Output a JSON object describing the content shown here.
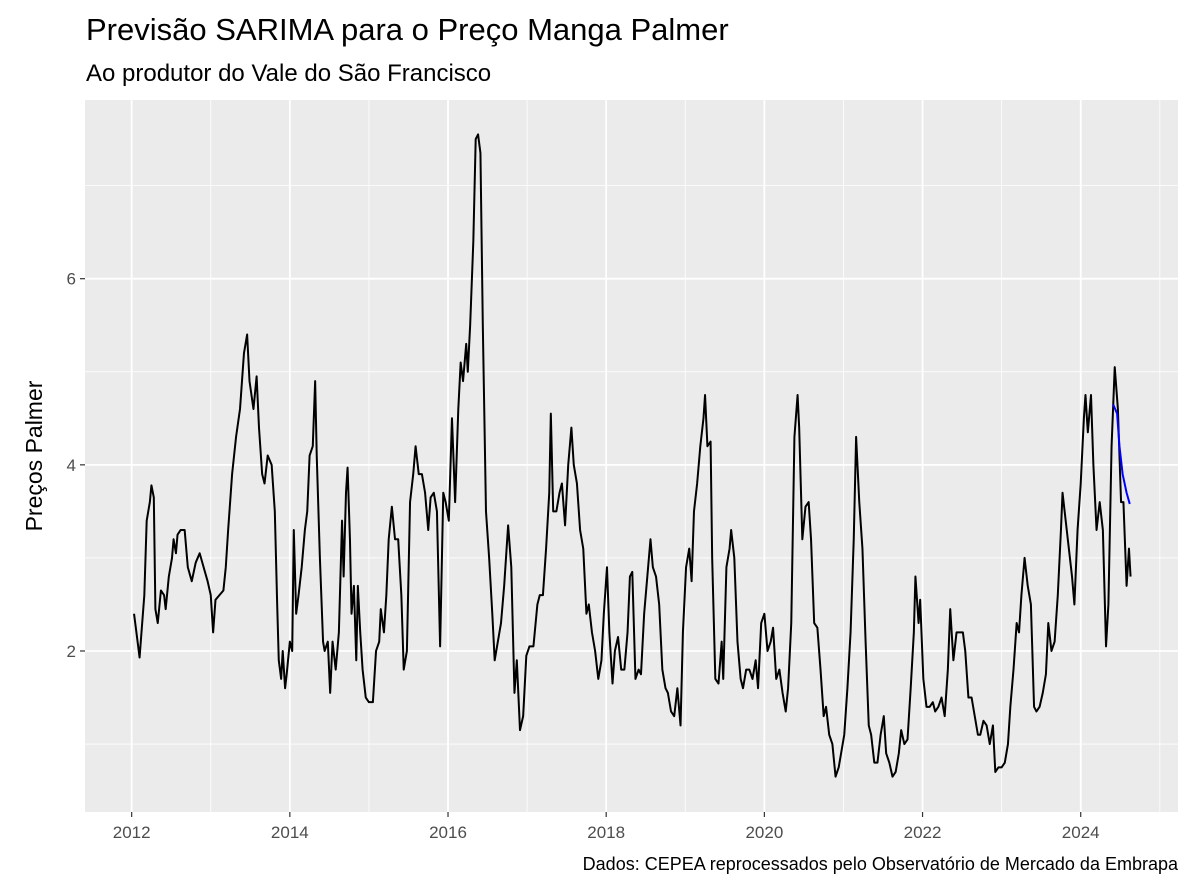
{
  "chart_data": {
    "type": "line",
    "title": "Previsão SARIMA para o Preço Manga Palmer",
    "subtitle": "Ao produtor do Vale do São Francisco",
    "ylabel": "Preços Palmer",
    "caption": "Dados: CEPEA reprocessados pelo Observatório de Mercado da Embrapa",
    "xlim": [
      2011.41,
      2025.23
    ],
    "ylim": [
      0.27,
      7.92
    ],
    "xticks": [
      2012,
      2014,
      2016,
      2018,
      2020,
      2022,
      2024
    ],
    "yticks": [
      2,
      4,
      6
    ],
    "grid": true,
    "series": [
      {
        "color": "#000000",
        "x": [
          2012.03,
          2012.06,
          2012.1,
          2012.16,
          2012.19,
          2012.23,
          2012.25,
          2012.28,
          2012.3,
          2012.33,
          2012.37,
          2012.41,
          2012.43,
          2012.47,
          2012.51,
          2012.53,
          2012.56,
          2012.58,
          2012.62,
          2012.67,
          2012.71,
          2012.76,
          2012.81,
          2012.86,
          2012.91,
          2012.96,
          2013.0,
          2013.03,
          2013.06,
          2013.11,
          2013.16,
          2013.19,
          2013.22,
          2013.27,
          2013.32,
          2013.37,
          2013.42,
          2013.46,
          2013.49,
          2013.54,
          2013.58,
          2013.61,
          2013.65,
          2013.68,
          2013.72,
          2013.77,
          2013.81,
          2013.84,
          2013.86,
          2013.89,
          2013.91,
          2013.94,
          2013.96,
          2014.0,
          2014.03,
          2014.05,
          2014.08,
          2014.11,
          2014.15,
          2014.19,
          2014.22,
          2014.25,
          2014.29,
          2014.32,
          2014.34,
          2014.38,
          2014.42,
          2014.44,
          2014.48,
          2014.51,
          2014.54,
          2014.58,
          2014.62,
          2014.66,
          2014.68,
          2014.71,
          2014.73,
          2014.76,
          2014.78,
          2014.81,
          2014.84,
          2014.86,
          2014.89,
          2014.92,
          2014.96,
          2015.0,
          2015.05,
          2015.09,
          2015.13,
          2015.15,
          2015.19,
          2015.22,
          2015.25,
          2015.29,
          2015.33,
          2015.37,
          2015.41,
          2015.44,
          2015.48,
          2015.52,
          2015.56,
          2015.59,
          2015.63,
          2015.67,
          2015.71,
          2015.75,
          2015.78,
          2015.82,
          2015.86,
          2015.9,
          2015.94,
          2015.97,
          2016.01,
          2016.05,
          2016.09,
          2016.13,
          2016.16,
          2016.19,
          2016.23,
          2016.25,
          2016.28,
          2016.32,
          2016.35,
          2016.38,
          2016.41,
          2016.44,
          2016.48,
          2016.52,
          2016.56,
          2016.59,
          2016.63,
          2016.67,
          2016.71,
          2016.76,
          2016.8,
          2016.84,
          2016.87,
          2016.91,
          2016.95,
          2016.99,
          2017.03,
          2017.08,
          2017.13,
          2017.16,
          2017.2,
          2017.24,
          2017.28,
          2017.3,
          2017.33,
          2017.37,
          2017.41,
          2017.44,
          2017.48,
          2017.52,
          2017.56,
          2017.59,
          2017.63,
          2017.67,
          2017.71,
          2017.75,
          2017.78,
          2017.82,
          2017.86,
          2017.9,
          2017.94,
          2017.97,
          2018.01,
          2018.04,
          2018.08,
          2018.11,
          2018.15,
          2018.19,
          2018.23,
          2018.27,
          2018.3,
          2018.33,
          2018.37,
          2018.41,
          2018.44,
          2018.48,
          2018.52,
          2018.56,
          2018.59,
          2018.63,
          2018.67,
          2018.71,
          2018.75,
          2018.78,
          2018.82,
          2018.86,
          2018.9,
          2018.94,
          2018.97,
          2019.01,
          2019.05,
          2019.08,
          2019.11,
          2019.15,
          2019.19,
          2019.23,
          2019.25,
          2019.28,
          2019.32,
          2019.34,
          2019.38,
          2019.42,
          2019.46,
          2019.48,
          2019.52,
          2019.56,
          2019.58,
          2019.62,
          2019.66,
          2019.7,
          2019.73,
          2019.77,
          2019.81,
          2019.85,
          2019.89,
          2019.92,
          2019.96,
          2020.0,
          2020.04,
          2020.08,
          2020.11,
          2020.15,
          2020.19,
          2020.23,
          2020.27,
          2020.3,
          2020.34,
          2020.38,
          2020.42,
          2020.44,
          2020.48,
          2020.52,
          2020.56,
          2020.59,
          2020.63,
          2020.67,
          2020.71,
          2020.75,
          2020.78,
          2020.82,
          2020.86,
          2020.9,
          2020.94,
          2020.97,
          2021.01,
          2021.05,
          2021.09,
          2021.13,
          2021.16,
          2021.2,
          2021.24,
          2021.28,
          2021.32,
          2021.35,
          2021.39,
          2021.43,
          2021.47,
          2021.51,
          2021.54,
          2021.58,
          2021.62,
          2021.66,
          2021.7,
          2021.73,
          2021.77,
          2021.81,
          2021.85,
          2021.89,
          2021.91,
          2021.95,
          2021.97,
          2022.01,
          2022.05,
          2022.09,
          2022.13,
          2022.16,
          2022.2,
          2022.24,
          2022.28,
          2022.32,
          2022.35,
          2022.39,
          2022.43,
          2022.47,
          2022.51,
          2022.54,
          2022.58,
          2022.62,
          2022.66,
          2022.7,
          2022.73,
          2022.77,
          2022.81,
          2022.85,
          2022.89,
          2022.92,
          2022.96,
          2023.0,
          2023.04,
          2023.08,
          2023.11,
          2023.15,
          2023.19,
          2023.22,
          2023.25,
          2023.29,
          2023.33,
          2023.37,
          2023.41,
          2023.44,
          2023.48,
          2023.52,
          2023.56,
          2023.59,
          2023.63,
          2023.67,
          2023.71,
          2023.75,
          2023.77,
          2023.81,
          2023.85,
          2023.89,
          2023.92,
          2023.96,
          2024.0,
          2024.04,
          2024.06,
          2024.09,
          2024.13,
          2024.16,
          2024.2,
          2024.24,
          2024.28,
          2024.32,
          2024.35,
          2024.39,
          2024.43,
          2024.47,
          2024.51,
          2024.54,
          2024.58,
          2024.61,
          2024.63
        ],
        "values": [
          2.4,
          2.2,
          1.93,
          2.6,
          3.4,
          3.6,
          3.78,
          3.65,
          2.45,
          2.3,
          2.65,
          2.6,
          2.45,
          2.8,
          3.0,
          3.2,
          3.05,
          3.25,
          3.3,
          3.3,
          2.9,
          2.75,
          2.95,
          3.05,
          2.9,
          2.75,
          2.6,
          2.2,
          2.55,
          2.6,
          2.65,
          2.9,
          3.3,
          3.9,
          4.3,
          4.6,
          5.2,
          5.4,
          4.9,
          4.6,
          4.95,
          4.4,
          3.9,
          3.8,
          4.1,
          4.0,
          3.5,
          2.5,
          1.9,
          1.7,
          2.0,
          1.6,
          1.75,
          2.1,
          2.0,
          3.3,
          2.4,
          2.6,
          2.9,
          3.3,
          3.5,
          4.1,
          4.2,
          4.9,
          4.1,
          3.0,
          2.1,
          2.0,
          2.1,
          1.55,
          2.1,
          1.8,
          2.2,
          3.4,
          2.8,
          3.7,
          3.97,
          3.2,
          2.4,
          2.7,
          1.9,
          2.7,
          2.2,
          1.8,
          1.5,
          1.45,
          1.45,
          2.0,
          2.1,
          2.45,
          2.2,
          2.6,
          3.2,
          3.55,
          3.2,
          3.2,
          2.6,
          1.8,
          2.0,
          3.6,
          3.9,
          4.2,
          3.9,
          3.9,
          3.7,
          3.3,
          3.65,
          3.7,
          3.5,
          2.05,
          3.7,
          3.6,
          3.4,
          4.5,
          3.6,
          4.6,
          5.1,
          4.9,
          5.3,
          5.0,
          5.5,
          6.4,
          7.5,
          7.55,
          7.35,
          5.5,
          3.5,
          3.0,
          2.4,
          1.9,
          2.1,
          2.3,
          2.7,
          3.35,
          2.9,
          1.55,
          1.9,
          1.15,
          1.3,
          1.95,
          2.05,
          2.05,
          2.5,
          2.6,
          2.6,
          3.1,
          3.7,
          4.55,
          3.5,
          3.5,
          3.7,
          3.8,
          3.35,
          4.0,
          4.4,
          4.0,
          3.8,
          3.3,
          3.1,
          2.4,
          2.5,
          2.2,
          2.0,
          1.7,
          1.9,
          2.4,
          2.9,
          2.2,
          1.65,
          2.0,
          2.15,
          1.8,
          1.8,
          2.2,
          2.8,
          2.85,
          1.7,
          1.8,
          1.75,
          2.4,
          2.8,
          3.2,
          2.9,
          2.8,
          2.5,
          1.8,
          1.6,
          1.55,
          1.35,
          1.3,
          1.6,
          1.2,
          2.2,
          2.9,
          3.1,
          2.75,
          3.5,
          3.8,
          4.2,
          4.5,
          4.75,
          4.2,
          4.25,
          3.0,
          1.7,
          1.65,
          2.1,
          1.7,
          2.9,
          3.1,
          3.3,
          3.0,
          2.1,
          1.7,
          1.6,
          1.8,
          1.8,
          1.7,
          1.9,
          1.6,
          2.3,
          2.4,
          2.0,
          2.1,
          2.25,
          1.7,
          1.8,
          1.55,
          1.35,
          1.6,
          2.3,
          4.3,
          4.75,
          4.4,
          3.2,
          3.55,
          3.6,
          3.2,
          2.3,
          2.25,
          1.8,
          1.3,
          1.4,
          1.1,
          1.0,
          0.65,
          0.75,
          0.9,
          1.1,
          1.6,
          2.2,
          3.2,
          4.3,
          3.6,
          3.1,
          2.1,
          1.2,
          1.1,
          0.8,
          0.8,
          1.1,
          1.3,
          0.9,
          0.8,
          0.65,
          0.7,
          0.9,
          1.15,
          1.0,
          1.05,
          1.6,
          2.2,
          2.8,
          2.3,
          2.55,
          1.7,
          1.4,
          1.4,
          1.45,
          1.35,
          1.4,
          1.5,
          1.3,
          1.8,
          2.45,
          1.9,
          2.2,
          2.2,
          2.2,
          2.0,
          1.5,
          1.5,
          1.3,
          1.1,
          1.1,
          1.25,
          1.2,
          1.0,
          1.2,
          0.7,
          0.75,
          0.75,
          0.8,
          1.0,
          1.4,
          1.8,
          2.3,
          2.2,
          2.6,
          3.0,
          2.7,
          2.5,
          1.4,
          1.35,
          1.4,
          1.55,
          1.75,
          2.3,
          2.0,
          2.1,
          2.6,
          3.3,
          3.7,
          3.4,
          3.1,
          2.8,
          2.5,
          3.3,
          3.8,
          4.5,
          4.75,
          4.35,
          4.75,
          4.0,
          3.3,
          3.6,
          3.3,
          2.05,
          2.5,
          4.2,
          5.05,
          4.6,
          3.6,
          3.6,
          2.7,
          3.1,
          2.8
        ]
      },
      {
        "color": "#0000ff",
        "x": [
          2024.41,
          2024.46,
          2024.49,
          2024.53,
          2024.58,
          2024.62
        ],
        "values": [
          4.65,
          4.55,
          4.2,
          3.9,
          3.7,
          3.58
        ]
      }
    ]
  }
}
